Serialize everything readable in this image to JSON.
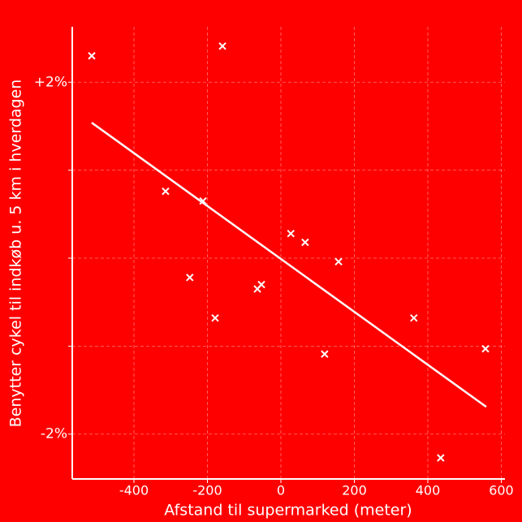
{
  "chart_data": {
    "type": "scatter",
    "xlabel": "Afstand til supermarked (meter)",
    "ylabel": "Benytter cykel til indkøb u. 5 km i hverdagen",
    "background": "#ff0000",
    "color": "#ffffff",
    "grid": true,
    "xlim": [
      -568,
      610
    ],
    "ylim": [
      -2.51,
      2.63
    ],
    "xticks": [
      -400,
      -200,
      0,
      200,
      400,
      600
    ],
    "yticks": [
      {
        "value": -2,
        "label": "-2%"
      },
      {
        "value": -1,
        "label": null
      },
      {
        "value": 0,
        "label": null
      },
      {
        "value": 1,
        "label": null
      },
      {
        "value": 2,
        "label": "+2%"
      }
    ],
    "x": [
      -515,
      -159,
      -314,
      -212,
      27,
      66,
      157,
      -248,
      -53,
      -64,
      -179,
      362,
      119,
      557,
      435
    ],
    "values": [
      2.3,
      2.41,
      0.76,
      0.65,
      0.28,
      0.18,
      -0.04,
      -0.22,
      -0.3,
      -0.35,
      -0.68,
      -0.68,
      -1.09,
      -1.03,
      -2.27
    ],
    "fit": {
      "x": [
        -515,
        559
      ],
      "values": [
        1.54,
        -1.69
      ]
    }
  }
}
